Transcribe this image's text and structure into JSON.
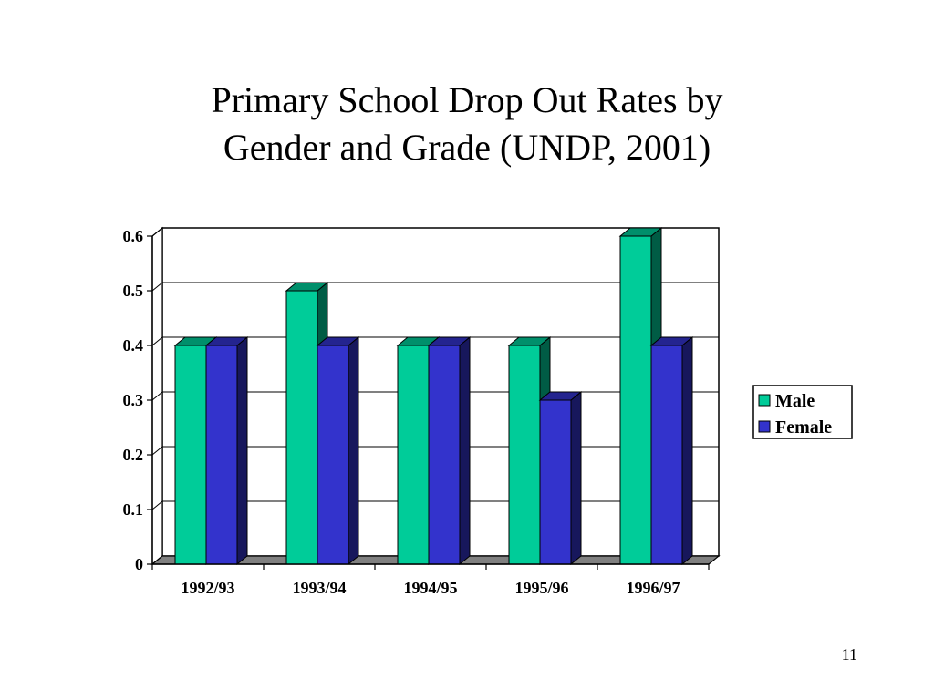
{
  "slide": {
    "title_line1": "Primary School Drop Out Rates by",
    "title_line2": "Gender and Grade (UNDP, 2001)",
    "page_number": "11"
  },
  "chart_data": {
    "type": "bar",
    "categories": [
      "1992/93",
      "1993/94",
      "1994/95",
      "1995/96",
      "1996/97"
    ],
    "series": [
      {
        "name": "Male",
        "values": [
          0.4,
          0.5,
          0.4,
          0.4,
          0.6
        ],
        "color": "#00CC99"
      },
      {
        "name": "Female",
        "values": [
          0.4,
          0.4,
          0.4,
          0.3,
          0.4
        ],
        "color": "#3333CC"
      }
    ],
    "y_ticks": [
      "0",
      "0.1",
      "0.2",
      "0.3",
      "0.4",
      "0.5",
      "0.6"
    ],
    "ylim": [
      0,
      0.6
    ],
    "grid": true,
    "legend": "right",
    "style": "3d-column"
  }
}
